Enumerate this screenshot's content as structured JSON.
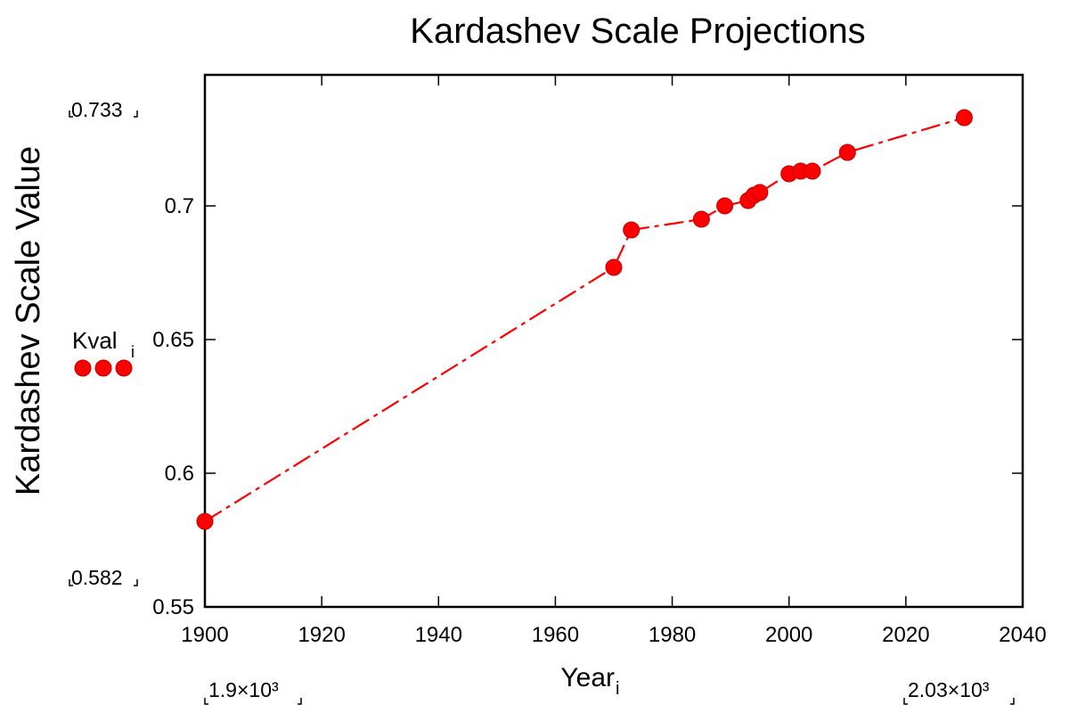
{
  "chart_data": {
    "type": "line",
    "title": "Kardashev Scale Projections",
    "xlabel": "Year",
    "xlabel_sub": "i",
    "ylabel": "Kardashev Scale Value",
    "xlim": [
      1900,
      2040
    ],
    "ylim": [
      0.55,
      0.749
    ],
    "x_ticks": [
      1900,
      1920,
      1940,
      1960,
      1980,
      2000,
      2020,
      2040
    ],
    "x_tick_labels": [
      "1900",
      "1920",
      "1940",
      "1960",
      "1980",
      "2000",
      "2020",
      "2040"
    ],
    "y_ticks": [
      0.55,
      0.6,
      0.65,
      0.7
    ],
    "y_tick_labels": [
      "0.55",
      "0.6",
      "0.65",
      "0.7"
    ],
    "grid": false,
    "series": [
      {
        "name": "Kval",
        "name_sub": "i",
        "color": "#ff0000",
        "line_style": "dashed",
        "marker": "circle",
        "x": [
          1900,
          1970,
          1973,
          1985,
          1989,
          1993,
          1994,
          1995,
          2000,
          2002,
          2004,
          2010,
          2030
        ],
        "y": [
          0.582,
          0.677,
          0.691,
          0.695,
          0.7,
          0.702,
          0.704,
          0.705,
          0.712,
          0.713,
          0.713,
          0.72,
          0.733
        ]
      }
    ],
    "range_annotations": {
      "y_max_label": "0.733",
      "y_min_label": "0.582",
      "x_min_label": "1.9×10³",
      "x_max_label": "2.03×10³"
    },
    "legend": {
      "placement": "left",
      "label": "Kval",
      "label_sub": "i"
    }
  }
}
